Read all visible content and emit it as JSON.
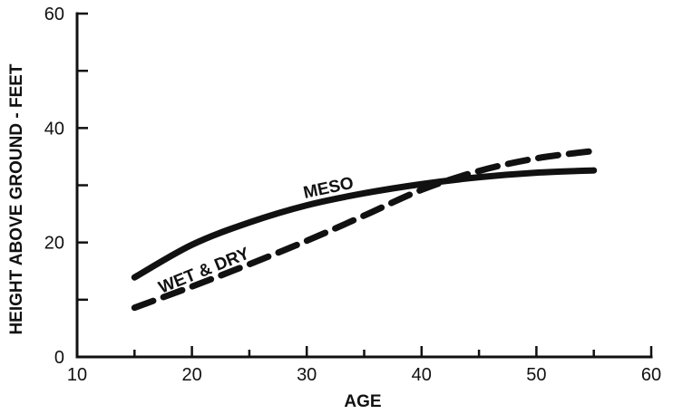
{
  "chart_data": {
    "type": "line",
    "xlabel": "AGE",
    "ylabel": "HEIGHT ABOVE GROUND - FEET",
    "xlim": [
      10,
      60
    ],
    "ylim": [
      0,
      60
    ],
    "x_ticks": [
      10,
      20,
      30,
      40,
      50,
      60
    ],
    "y_ticks": [
      0,
      20,
      40,
      60
    ],
    "y_minor_ticks": [
      10,
      30,
      50
    ],
    "x_minor_ticks": [
      15,
      25,
      35,
      45,
      55
    ],
    "grid": false,
    "series": [
      {
        "name": "MESO",
        "style": "solid",
        "x": [
          15,
          20,
          25,
          30,
          35,
          40,
          45,
          50,
          55
        ],
        "y": [
          13.9,
          19.6,
          23.5,
          26.5,
          28.6,
          30.2,
          31.4,
          32.2,
          32.6
        ]
      },
      {
        "name": "WET & DRY",
        "style": "dashed",
        "x": [
          15,
          20,
          25,
          30,
          35,
          40,
          45,
          50,
          55
        ],
        "y": [
          8.6,
          12.3,
          16.2,
          20.3,
          24.7,
          29.2,
          32.5,
          34.7,
          36.0
        ]
      }
    ],
    "labels": {
      "meso": "MESO",
      "wet_dry": "WET & DRY"
    }
  }
}
